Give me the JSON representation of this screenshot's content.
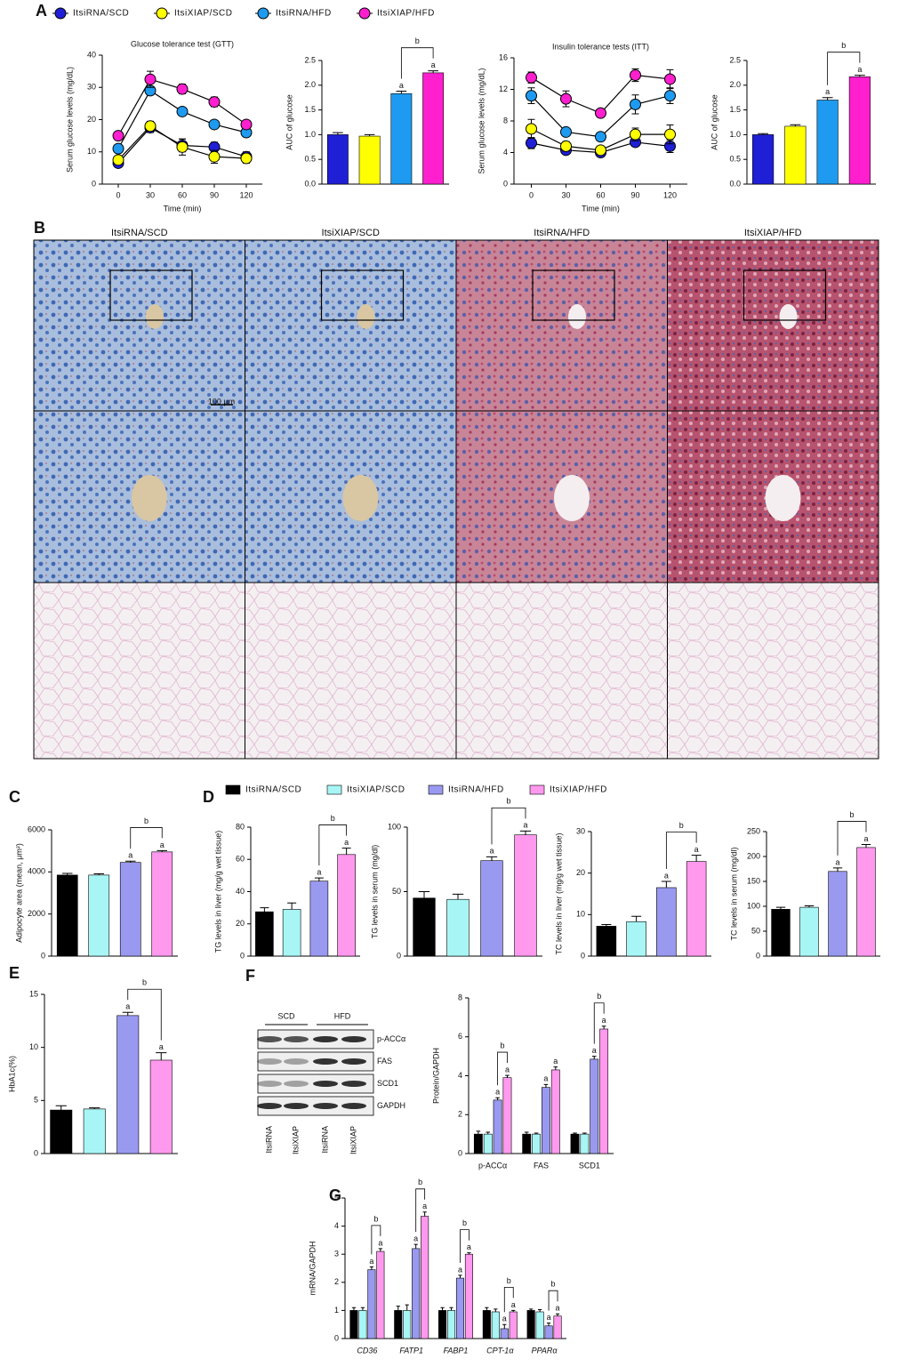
{
  "chart_data": [
    {
      "type": "line",
      "panel": "A",
      "title": "Glucose tolerance test (GTT)",
      "xlabel": "Time (min)",
      "ylabel": "Serum glucose levels (mg/dL)",
      "legend": "top",
      "x": [
        0,
        30,
        60,
        90,
        120
      ],
      "xlim": [
        -15,
        135
      ],
      "xticks": [
        0,
        30,
        60,
        90,
        120
      ],
      "ylim": [
        0,
        40
      ],
      "yticks": [
        0,
        10,
        20,
        30,
        40
      ],
      "series": [
        {
          "name": "ItsiRNA/SCD",
          "color": "#1f1fd6",
          "values": [
            6.5,
            17.5,
            12,
            11.5,
            8.5
          ],
          "errors": [
            0.5,
            1.5,
            2,
            1.5,
            1.5
          ]
        },
        {
          "name": "ItsiXIAP/SCD",
          "color": "#ffff00",
          "values": [
            7.5,
            18,
            11.5,
            8.5,
            8
          ],
          "errors": [
            0.8,
            1.5,
            2.5,
            2,
            1.5
          ]
        },
        {
          "name": "ItsiRNA/HFD",
          "color": "#1e9bf0",
          "values": [
            11,
            29,
            22.5,
            18.5,
            16
          ],
          "errors": [
            0.8,
            1.2,
            1.2,
            0.8,
            0.8
          ]
        },
        {
          "name": "ItsiXIAP/HFD",
          "color": "#ff1fcf",
          "values": [
            15,
            32.5,
            29.5,
            25.5,
            18.5
          ],
          "errors": [
            0.8,
            2.5,
            1.5,
            1.5,
            1
          ]
        }
      ]
    },
    {
      "type": "bar",
      "ylabel": "AUC of glucose",
      "categories": [
        null
      ],
      "ylim": [
        0,
        2.5
      ],
      "yticks": [
        {
          "value": 0,
          "label": "0.0"
        },
        0.5,
        {
          "value": 1,
          "label": "1.0"
        },
        1.5,
        {
          "value": 2,
          "label": "2.0"
        },
        2.5
      ],
      "series": [
        {
          "name": "ItsiRNA/SCD",
          "color": "#1f1fd6",
          "values": [
            1.0
          ],
          "errors": [
            0.04
          ],
          "sig": [
            null
          ]
        },
        {
          "name": "ItsiXIAP/SCD",
          "color": "#ffff00",
          "values": [
            0.97
          ],
          "errors": [
            0.03
          ],
          "sig": [
            null
          ]
        },
        {
          "name": "ItsiRNA/HFD",
          "color": "#1e9bf0",
          "values": [
            1.83
          ],
          "errors": [
            0.05
          ],
          "sig": [
            "a"
          ]
        },
        {
          "name": "ItsiXIAP/HFD",
          "color": "#ff1fcf",
          "values": [
            2.25
          ],
          "errors": [
            0.04
          ],
          "sig": [
            "a"
          ]
        }
      ],
      "brackets": [
        {
          "group": 0,
          "from": 2,
          "to": 3,
          "label": "b"
        }
      ]
    },
    {
      "type": "line",
      "title": "Insulin tolerance tests (ITT)",
      "xlabel": "Time (min)",
      "ylabel": "Serum glucose levels (mg/dL)",
      "x": [
        0,
        30,
        60,
        90,
        120
      ],
      "xlim": [
        -15,
        135
      ],
      "xticks": [
        0,
        30,
        60,
        90,
        120
      ],
      "ylim": [
        0,
        16
      ],
      "yticks": [
        0,
        4,
        8,
        12,
        16
      ],
      "series": [
        {
          "name": "ItsiRNA/SCD",
          "color": "#1f1fd6",
          "values": [
            5.2,
            4.3,
            4,
            5.3,
            4.8
          ],
          "errors": [
            0.7,
            0.5,
            0.5,
            0.5,
            0.8
          ]
        },
        {
          "name": "ItsiXIAP/SCD",
          "color": "#ffff00",
          "values": [
            7,
            4.8,
            4.3,
            6.3,
            6.3
          ],
          "errors": [
            1.2,
            0.6,
            0.5,
            0.8,
            1.2
          ]
        },
        {
          "name": "ItsiRNA/HFD",
          "color": "#1e9bf0",
          "values": [
            11.2,
            6.6,
            6,
            10.1,
            11.2
          ],
          "errors": [
            1,
            0.4,
            0.4,
            1.2,
            1
          ]
        },
        {
          "name": "ItsiXIAP/HFD",
          "color": "#ff1fcf",
          "values": [
            13.5,
            10.8,
            9,
            13.8,
            13.3
          ],
          "errors": [
            0.7,
            1,
            0.4,
            0.8,
            1.2
          ]
        }
      ]
    },
    {
      "type": "bar",
      "ylabel": "AUC of glucose",
      "categories": [
        null
      ],
      "ylim": [
        0,
        2.5
      ],
      "yticks": [
        {
          "value": 0,
          "label": "0.0"
        },
        0.5,
        {
          "value": 1,
          "label": "1.0"
        },
        1.5,
        {
          "value": 2,
          "label": "2.0"
        },
        2.5
      ],
      "series": [
        {
          "name": "ItsiRNA/SCD",
          "color": "#1f1fd6",
          "values": [
            1.0
          ],
          "errors": [
            0.02
          ],
          "sig": [
            null
          ]
        },
        {
          "name": "ItsiXIAP/SCD",
          "color": "#ffff00",
          "values": [
            1.17
          ],
          "errors": [
            0.03
          ],
          "sig": [
            null
          ]
        },
        {
          "name": "ItsiRNA/HFD",
          "color": "#1e9bf0",
          "values": [
            1.7
          ],
          "errors": [
            0.05
          ],
          "sig": [
            "a"
          ]
        },
        {
          "name": "ItsiXIAP/HFD",
          "color": "#ff1fcf",
          "values": [
            2.17
          ],
          "errors": [
            0.03
          ],
          "sig": [
            "a"
          ]
        }
      ],
      "brackets": [
        {
          "group": 0,
          "from": 2,
          "to": 3,
          "label": "b"
        }
      ]
    },
    {
      "type": "bar",
      "panel": "C",
      "ylabel": "Adipocyte area (mean, μm²)",
      "categories": [
        null
      ],
      "ylim": [
        0,
        6000
      ],
      "yticks": [
        0,
        2000,
        4000,
        6000
      ],
      "series": [
        {
          "name": "ItsiRNA/SCD",
          "color": "#000000",
          "values": [
            3850
          ],
          "errors": [
            80
          ],
          "sig": [
            null
          ]
        },
        {
          "name": "ItsiXIAP/SCD",
          "color": "#a8f5f5",
          "values": [
            3850
          ],
          "errors": [
            60
          ],
          "sig": [
            null
          ]
        },
        {
          "name": "ItsiRNA/HFD",
          "color": "#9999f0",
          "values": [
            4450
          ],
          "errors": [
            60
          ],
          "sig": [
            "a"
          ]
        },
        {
          "name": "ItsiXIAP/HFD",
          "color": "#ff99ee",
          "values": [
            4950
          ],
          "errors": [
            60
          ],
          "sig": [
            "a"
          ]
        }
      ],
      "brackets": [
        {
          "group": 0,
          "from": 2,
          "to": 3,
          "label": "b"
        }
      ]
    },
    {
      "type": "bar",
      "panel": "D",
      "legend": "top",
      "ylabel": "TG levels in liver (mg/g wet tissue)",
      "categories": [
        null
      ],
      "ylim": [
        0,
        80
      ],
      "yticks": [
        0,
        20,
        40,
        60,
        80
      ],
      "series": [
        {
          "name": "ItsiRNA/SCD",
          "color": "#000000",
          "values": [
            27.5
          ],
          "errors": [
            2.5
          ],
          "sig": [
            null
          ]
        },
        {
          "name": "ItsiXIAP/SCD",
          "color": "#a8f5f5",
          "values": [
            29
          ],
          "errors": [
            4
          ],
          "sig": [
            null
          ]
        },
        {
          "name": "ItsiRNA/HFD",
          "color": "#9999f0",
          "values": [
            46.5
          ],
          "errors": [
            2
          ],
          "sig": [
            "a"
          ]
        },
        {
          "name": "ItsiXIAP/HFD",
          "color": "#ff99ee",
          "values": [
            63
          ],
          "errors": [
            4
          ],
          "sig": [
            "a"
          ]
        }
      ],
      "brackets": [
        {
          "group": 0,
          "from": 2,
          "to": 3,
          "label": "b"
        }
      ]
    },
    {
      "type": "bar",
      "ylabel": "TG levels in serum (mg/dl)",
      "categories": [
        null
      ],
      "ylim": [
        0,
        100
      ],
      "yticks": [
        0,
        50,
        100
      ],
      "series": [
        {
          "name": "ItsiRNA/SCD",
          "color": "#000000",
          "values": [
            45
          ],
          "errors": [
            5
          ],
          "sig": [
            null
          ]
        },
        {
          "name": "ItsiXIAP/SCD",
          "color": "#a8f5f5",
          "values": [
            44
          ],
          "errors": [
            4
          ],
          "sig": [
            null
          ]
        },
        {
          "name": "ItsiRNA/HFD",
          "color": "#9999f0",
          "values": [
            74
          ],
          "errors": [
            3
          ],
          "sig": [
            "a"
          ]
        },
        {
          "name": "ItsiXIAP/HFD",
          "color": "#ff99ee",
          "values": [
            94
          ],
          "errors": [
            3
          ],
          "sig": [
            "a"
          ]
        }
      ],
      "brackets": [
        {
          "group": 0,
          "from": 2,
          "to": 3,
          "label": "b"
        }
      ]
    },
    {
      "type": "bar",
      "ylabel": "TC levels in liver (mg/g wet tissue)",
      "categories": [
        null
      ],
      "ylim": [
        0,
        30
      ],
      "yticks": [
        0,
        10,
        20,
        30
      ],
      "series": [
        {
          "name": "ItsiRNA/SCD",
          "color": "#000000",
          "values": [
            7.2
          ],
          "errors": [
            0.4
          ],
          "sig": [
            null
          ]
        },
        {
          "name": "ItsiXIAP/SCD",
          "color": "#a8f5f5",
          "values": [
            8.3
          ],
          "errors": [
            1.3
          ],
          "sig": [
            null
          ]
        },
        {
          "name": "ItsiRNA/HFD",
          "color": "#9999f0",
          "values": [
            16.5
          ],
          "errors": [
            1.5
          ],
          "sig": [
            "a"
          ]
        },
        {
          "name": "ItsiXIAP/HFD",
          "color": "#ff99ee",
          "values": [
            22.8
          ],
          "errors": [
            1.5
          ],
          "sig": [
            "a"
          ]
        }
      ],
      "brackets": [
        {
          "group": 0,
          "from": 2,
          "to": 3,
          "label": "b"
        }
      ]
    },
    {
      "type": "bar",
      "ylabel": "TC levels in serum (mg/dl)",
      "categories": [
        null
      ],
      "ylim": [
        0,
        250
      ],
      "yticks": [
        0,
        50,
        100,
        150,
        200,
        250
      ],
      "series": [
        {
          "name": "ItsiRNA/SCD",
          "color": "#000000",
          "values": [
            94
          ],
          "errors": [
            4
          ],
          "sig": [
            null
          ]
        },
        {
          "name": "ItsiXIAP/SCD",
          "color": "#a8f5f5",
          "values": [
            98
          ],
          "errors": [
            3
          ],
          "sig": [
            null
          ]
        },
        {
          "name": "ItsiRNA/HFD",
          "color": "#9999f0",
          "values": [
            170
          ],
          "errors": [
            7
          ],
          "sig": [
            "a"
          ]
        },
        {
          "name": "ItsiXIAP/HFD",
          "color": "#ff99ee",
          "values": [
            218
          ],
          "errors": [
            6
          ],
          "sig": [
            "a"
          ]
        }
      ],
      "brackets": [
        {
          "group": 0,
          "from": 2,
          "to": 3,
          "label": "b"
        }
      ]
    },
    {
      "type": "bar",
      "panel": "E",
      "ylabel": "HbA1c(%)",
      "categories": [
        null
      ],
      "ylim": [
        0,
        15
      ],
      "yticks": [
        0,
        5,
        10,
        15
      ],
      "series": [
        {
          "name": "ItsiRNA/SCD",
          "color": "#000000",
          "values": [
            4.1
          ],
          "errors": [
            0.4
          ],
          "sig": [
            null
          ]
        },
        {
          "name": "ItsiXIAP/SCD",
          "color": "#a8f5f5",
          "values": [
            4.2
          ],
          "errors": [
            0.1
          ],
          "sig": [
            null
          ]
        },
        {
          "name": "ItsiRNA/HFD",
          "color": "#9999f0",
          "values": [
            13
          ],
          "errors": [
            0.3
          ],
          "sig": [
            "a"
          ]
        },
        {
          "name": "ItsiXIAP/HFD",
          "color": "#ff99ee",
          "values": [
            8.8
          ],
          "errors": [
            0.7
          ],
          "sig": [
            "a"
          ]
        }
      ],
      "brackets": [
        {
          "group": 0,
          "from": 2,
          "to": 3,
          "label": "b"
        }
      ]
    },
    {
      "type": "bar",
      "ylabel": "Protein/GAPDH",
      "categories": [
        "p-ACCα",
        "FAS",
        "SCD1"
      ],
      "ylim": [
        0,
        8
      ],
      "yticks": [
        0,
        2,
        4,
        6,
        8
      ],
      "series": [
        {
          "name": "ItsiRNA/SCD",
          "color": "#000000",
          "values": [
            1,
            1,
            1
          ],
          "errors": [
            0.15,
            0.1,
            0.05
          ],
          "sig": [
            null,
            null,
            null
          ]
        },
        {
          "name": "ItsiXIAP/SCD",
          "color": "#a8f5f5",
          "values": [
            1,
            1,
            1
          ],
          "errors": [
            0.1,
            0.05,
            0.05
          ],
          "sig": [
            null,
            null,
            null
          ]
        },
        {
          "name": "ItsiRNA/HFD",
          "color": "#9999f0",
          "values": [
            2.75,
            3.4,
            4.85
          ],
          "errors": [
            0.12,
            0.15,
            0.15
          ],
          "sig": [
            "a",
            "a",
            "a"
          ]
        },
        {
          "name": "ItsiXIAP/HFD",
          "color": "#ff99ee",
          "values": [
            3.9,
            4.3,
            6.4
          ],
          "errors": [
            0.12,
            0.15,
            0.15
          ],
          "sig": [
            "a",
            "a",
            "a"
          ]
        }
      ],
      "brackets": [
        {
          "group": 0,
          "from": 2,
          "to": 3,
          "label": "b"
        },
        {
          "group": 2,
          "from": 2,
          "to": 3,
          "label": "b"
        }
      ]
    },
    {
      "type": "bar",
      "panel": "G",
      "ylabel": "mRNA/GAPDH",
      "italic_categories": true,
      "categories": [
        "CD36",
        "FATP1",
        "FABP1",
        "CPT-1α",
        "PPARα"
      ],
      "ylim": [
        0,
        5
      ],
      "yticks": [
        0,
        1,
        2,
        3,
        4,
        5
      ],
      "series": [
        {
          "name": "ItsiRNA/SCD",
          "color": "#000000",
          "values": [
            1,
            1,
            1,
            1,
            1
          ],
          "errors": [
            0.1,
            0.15,
            0.1,
            0.1,
            0.05
          ],
          "sig": [
            null,
            null,
            null,
            null,
            null
          ]
        },
        {
          "name": "ItsiXIAP/SCD",
          "color": "#a8f5f5",
          "values": [
            1,
            1,
            1,
            0.95,
            0.95
          ],
          "errors": [
            0.1,
            0.2,
            0.1,
            0.1,
            0.08
          ],
          "sig": [
            null,
            null,
            null,
            null,
            null
          ]
        },
        {
          "name": "ItsiRNA/HFD",
          "color": "#9999f0",
          "values": [
            2.45,
            3.2,
            2.15,
            0.35,
            0.45
          ],
          "errors": [
            0.1,
            0.15,
            0.1,
            0.15,
            0.1
          ],
          "sig": [
            "a",
            "a",
            "a",
            "a",
            "a"
          ]
        },
        {
          "name": "ItsiXIAP/HFD",
          "color": "#ff99ee",
          "values": [
            3.1,
            4.35,
            3.0,
            0.95,
            0.8
          ],
          "errors": [
            0.1,
            0.15,
            0.05,
            0.05,
            0.08
          ],
          "sig": [
            "a",
            "a",
            "a",
            "a",
            "a"
          ]
        }
      ],
      "brackets": [
        {
          "group": 0,
          "from": 2,
          "to": 3,
          "label": "b"
        },
        {
          "group": 1,
          "from": 2,
          "to": 3,
          "label": "b"
        },
        {
          "group": 2,
          "from": 2,
          "to": 3,
          "label": "b"
        },
        {
          "group": 3,
          "from": 2,
          "to": 3,
          "label": "b"
        },
        {
          "group": 4,
          "from": 2,
          "to": 3,
          "label": "b"
        }
      ]
    }
  ],
  "histology": {
    "panel": "B",
    "columns": [
      "ItsiRNA/SCD",
      "ItsiXIAP/SCD",
      "ItsiRNA/HFD",
      "ItsiXIAP/HFD"
    ],
    "scale_bar": "100 μm"
  },
  "blot": {
    "panel": "F",
    "groups": [
      "SCD",
      "HFD"
    ],
    "proteins": [
      "p-ACCα",
      "FAS",
      "SCD1",
      "GAPDH"
    ],
    "lanes": [
      "ItsiRNA",
      "ItsiXIAP",
      "ItsiRNA",
      "ItsiXIAP"
    ]
  }
}
